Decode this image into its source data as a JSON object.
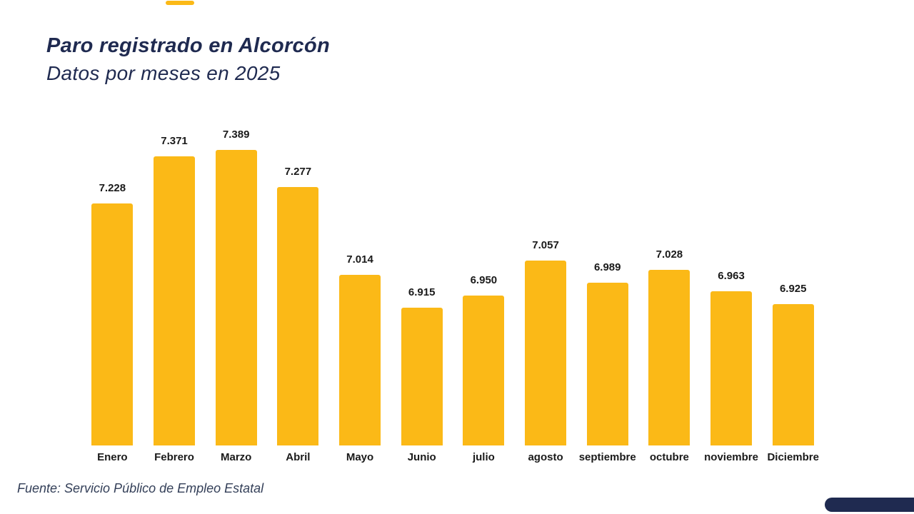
{
  "page": {
    "title": "Paro registrado en Alcorcón",
    "subtitle": "Datos por meses en 2025",
    "source": "Fuente: Servicio Público de Empleo Estatal"
  },
  "colors": {
    "bar": "#FBB917",
    "title_navy": "#1F2A50",
    "label_black": "#1a1a1a",
    "background": "#FFFFFF",
    "accent_yellow": "#FBB917",
    "accent_navy": "#1F2A50"
  },
  "chart_data": {
    "type": "bar",
    "title": "Paro registrado en Alcorcón",
    "subtitle": "Datos por meses en 2025",
    "categories": [
      "Enero",
      "Febrero",
      "Marzo",
      "Abril",
      "Mayo",
      "Junio",
      "julio",
      "agosto",
      "septiembre",
      "octubre",
      "noviembre",
      "Diciembre"
    ],
    "values": [
      7228,
      7371,
      7389,
      7277,
      7014,
      6915,
      6950,
      7057,
      6989,
      7028,
      6963,
      6925
    ],
    "value_labels": [
      "7.228",
      "7.371",
      "7.389",
      "7.277",
      "7.014",
      "6.915",
      "6.950",
      "7.057",
      "6.989",
      "7.028",
      "6.963",
      "6.925"
    ],
    "xlabel": "",
    "ylabel": "",
    "ylim": [
      6500,
      7400
    ],
    "grid": false,
    "legend": false,
    "bar_color": "#FBB917",
    "source_note": "Fuente: Servicio Público de Empleo Estatal"
  }
}
